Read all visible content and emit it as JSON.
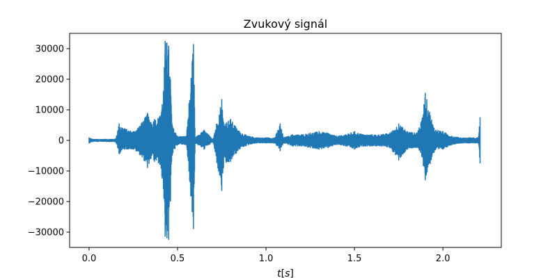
{
  "chart_data": {
    "type": "line",
    "title": "Zvukový signál",
    "xlabel": "t[s]",
    "xlabel_parts": {
      "var": "t",
      "open": "[",
      "unit": "s",
      "close": "]"
    },
    "ylabel": "",
    "xlim": [
      -0.11,
      2.33
    ],
    "ylim": [
      -35000,
      35000
    ],
    "xticks": [
      0.0,
      0.5,
      1.0,
      1.5,
      2.0
    ],
    "xtick_labels": [
      "0.0",
      "0.5",
      "1.0",
      "1.5",
      "2.0"
    ],
    "yticks": [
      -30000,
      -20000,
      -10000,
      0,
      10000,
      20000,
      30000
    ],
    "ytick_labels": [
      "−30000",
      "−20000",
      "−10000",
      "0",
      "10000",
      "20000",
      "30000"
    ],
    "grid": false,
    "line_color": "#1f77b4",
    "series": [
      {
        "x": [
          0.0,
          0.02,
          0.05,
          0.1,
          0.15,
          0.17,
          0.2,
          0.25,
          0.3,
          0.33,
          0.35,
          0.37,
          0.4,
          0.42,
          0.43,
          0.44,
          0.45,
          0.46,
          0.47,
          0.5,
          0.55,
          0.59,
          0.6,
          0.65,
          0.7,
          0.75,
          0.76,
          0.8,
          0.85,
          0.9,
          0.95,
          1.0,
          1.05,
          1.08,
          1.1,
          1.15,
          1.2,
          1.25,
          1.3,
          1.35,
          1.4,
          1.45,
          1.5,
          1.55,
          1.6,
          1.65,
          1.7,
          1.75,
          1.8,
          1.85,
          1.88,
          1.9,
          1.95,
          2.0,
          2.05,
          2.1,
          2.15,
          2.2,
          2.21
        ],
        "y_upper": [
          1000,
          500,
          500,
          500,
          600,
          5500,
          4000,
          3000,
          6000,
          9000,
          6000,
          7000,
          8000,
          16000,
          32500,
          32000,
          31000,
          20000,
          5000,
          1500,
          1500,
          31500,
          1000,
          3500,
          500,
          13500,
          6000,
          7000,
          3000,
          1500,
          1000,
          1000,
          1000,
          5500,
          1000,
          2000,
          2000,
          2500,
          3000,
          2500,
          1500,
          2000,
          3000,
          2000,
          2000,
          2000,
          2500,
          5500,
          3000,
          2500,
          6500,
          15500,
          4000,
          3000,
          1500,
          1000,
          1000,
          1000,
          7500
        ],
        "y_lower": [
          -1000,
          -500,
          -500,
          -500,
          -600,
          -4500,
          -3000,
          -3000,
          -5500,
          -9000,
          -6000,
          -7000,
          -8000,
          -16000,
          -31500,
          -32000,
          -32500,
          -20000,
          -5000,
          -1500,
          -1500,
          -29000,
          -1000,
          -3000,
          -500,
          -16500,
          -9000,
          -7000,
          -3000,
          -1500,
          -1000,
          -1000,
          -1000,
          -3500,
          -1000,
          -2000,
          -2000,
          -2500,
          -3000,
          -2500,
          -1500,
          -2000,
          -3000,
          -2000,
          -2000,
          -2000,
          -2500,
          -6500,
          -3000,
          -2500,
          -5000,
          -13000,
          -4000,
          -3000,
          -1500,
          -1000,
          -1000,
          -1000,
          -7500
        ]
      }
    ]
  }
}
